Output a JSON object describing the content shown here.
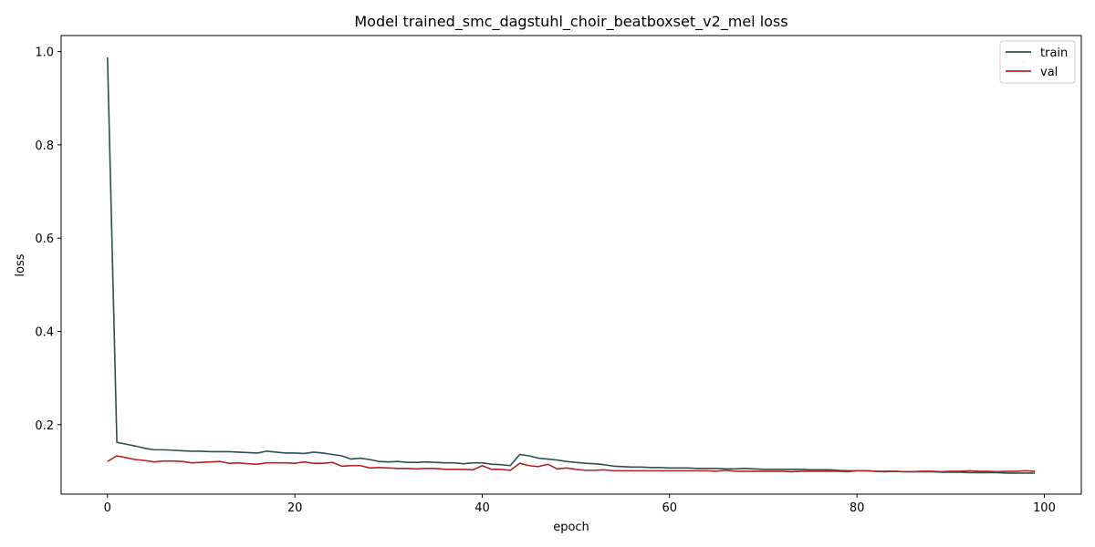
{
  "chart_data": {
    "type": "line",
    "title": "Model trained_smc_dagstuhl_choir_beatboxset_v2_mel loss",
    "xlabel": "epoch",
    "ylabel": "loss",
    "xlim": [
      -4.95,
      103.95
    ],
    "ylim": [
      0.0509,
      1.0345
    ],
    "xticks": [
      0,
      20,
      40,
      60,
      80,
      100
    ],
    "yticks": [
      0.2,
      0.4,
      0.6,
      0.8,
      1.0
    ],
    "xtick_labels": [
      "0",
      "20",
      "40",
      "60",
      "80",
      "100"
    ],
    "ytick_labels": [
      "0.2",
      "0.4",
      "0.6",
      "0.8",
      "1.0"
    ],
    "grid": false,
    "legend_position": "top-right",
    "x": [
      0,
      1,
      2,
      3,
      4,
      5,
      6,
      7,
      8,
      9,
      10,
      11,
      12,
      13,
      14,
      15,
      16,
      17,
      18,
      19,
      20,
      21,
      22,
      23,
      24,
      25,
      26,
      27,
      28,
      29,
      30,
      31,
      32,
      33,
      34,
      35,
      36,
      37,
      38,
      39,
      40,
      41,
      42,
      43,
      44,
      45,
      46,
      47,
      48,
      49,
      50,
      51,
      52,
      53,
      54,
      55,
      56,
      57,
      58,
      59,
      60,
      61,
      62,
      63,
      64,
      65,
      66,
      67,
      68,
      69,
      70,
      71,
      72,
      73,
      74,
      75,
      76,
      77,
      78,
      79,
      80,
      81,
      82,
      83,
      84,
      85,
      86,
      87,
      88,
      89,
      90,
      91,
      92,
      93,
      94,
      95,
      96,
      97,
      98,
      99
    ],
    "series": [
      {
        "name": "train",
        "color": "#2f4f4f",
        "values": [
          0.988,
          0.162,
          0.158,
          0.154,
          0.149,
          0.146,
          0.146,
          0.145,
          0.144,
          0.143,
          0.143,
          0.142,
          0.142,
          0.142,
          0.141,
          0.14,
          0.139,
          0.143,
          0.141,
          0.139,
          0.139,
          0.138,
          0.141,
          0.139,
          0.136,
          0.133,
          0.126,
          0.128,
          0.125,
          0.121,
          0.12,
          0.121,
          0.119,
          0.119,
          0.12,
          0.119,
          0.118,
          0.118,
          0.116,
          0.118,
          0.118,
          0.115,
          0.114,
          0.112,
          0.136,
          0.133,
          0.128,
          0.126,
          0.124,
          0.121,
          0.119,
          0.117,
          0.116,
          0.114,
          0.111,
          0.11,
          0.109,
          0.109,
          0.108,
          0.108,
          0.107,
          0.107,
          0.107,
          0.106,
          0.106,
          0.106,
          0.105,
          0.105,
          0.106,
          0.105,
          0.104,
          0.104,
          0.104,
          0.104,
          0.104,
          0.103,
          0.103,
          0.103,
          0.102,
          0.101,
          0.101,
          0.101,
          0.1,
          0.1,
          0.1,
          0.099,
          0.099,
          0.099,
          0.099,
          0.098,
          0.098,
          0.098,
          0.097,
          0.097,
          0.097,
          0.097,
          0.096,
          0.096,
          0.096,
          0.096
        ]
      },
      {
        "name": "val",
        "color": "#b22222",
        "values": [
          0.121,
          0.133,
          0.129,
          0.125,
          0.123,
          0.12,
          0.122,
          0.122,
          0.121,
          0.118,
          0.119,
          0.12,
          0.121,
          0.117,
          0.118,
          0.116,
          0.115,
          0.118,
          0.118,
          0.118,
          0.117,
          0.12,
          0.117,
          0.117,
          0.119,
          0.111,
          0.112,
          0.112,
          0.107,
          0.108,
          0.107,
          0.106,
          0.106,
          0.105,
          0.106,
          0.106,
          0.104,
          0.104,
          0.104,
          0.103,
          0.112,
          0.104,
          0.104,
          0.102,
          0.117,
          0.112,
          0.11,
          0.115,
          0.105,
          0.107,
          0.104,
          0.102,
          0.102,
          0.103,
          0.101,
          0.101,
          0.101,
          0.101,
          0.101,
          0.101,
          0.101,
          0.101,
          0.101,
          0.101,
          0.101,
          0.1,
          0.102,
          0.1,
          0.1,
          0.1,
          0.1,
          0.1,
          0.1,
          0.099,
          0.1,
          0.1,
          0.1,
          0.1,
          0.1,
          0.099,
          0.101,
          0.101,
          0.1,
          0.099,
          0.1,
          0.099,
          0.099,
          0.1,
          0.1,
          0.099,
          0.1,
          0.1,
          0.101,
          0.1,
          0.1,
          0.099,
          0.1,
          0.1,
          0.101,
          0.1
        ]
      }
    ]
  }
}
